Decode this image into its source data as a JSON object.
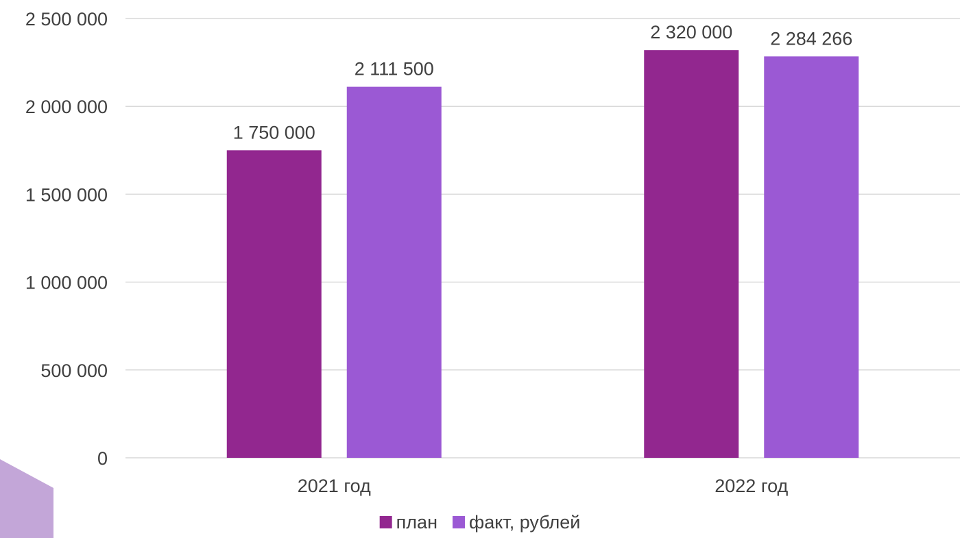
{
  "chart_data": {
    "type": "bar",
    "title": "",
    "xlabel": "",
    "ylabel": "",
    "categories": [
      "2021 год",
      "2022 год"
    ],
    "series": [
      {
        "name": "план",
        "values": [
          1750000,
          2320000
        ],
        "color": "#92278f"
      },
      {
        "name": "факт, рублей",
        "values": [
          2111500,
          2284266
        ],
        "color": "#9b59d4"
      }
    ],
    "data_labels": [
      [
        "1 750 000",
        "2 320 000"
      ],
      [
        "2 111 500",
        "2 284 266"
      ]
    ],
    "ylim": [
      0,
      2500000
    ],
    "yticks": [
      0,
      500000,
      1000000,
      1500000,
      2000000,
      2500000
    ],
    "ytick_labels": [
      "0",
      "500 000",
      "1 000 000",
      "1 500 000",
      "2 000 000",
      "2 500 000"
    ],
    "grid": true,
    "gridline_color": "#d9d9d9",
    "legend_position": "bottom"
  },
  "decoration": {
    "corner_shape_color": "#c3a6d8"
  }
}
